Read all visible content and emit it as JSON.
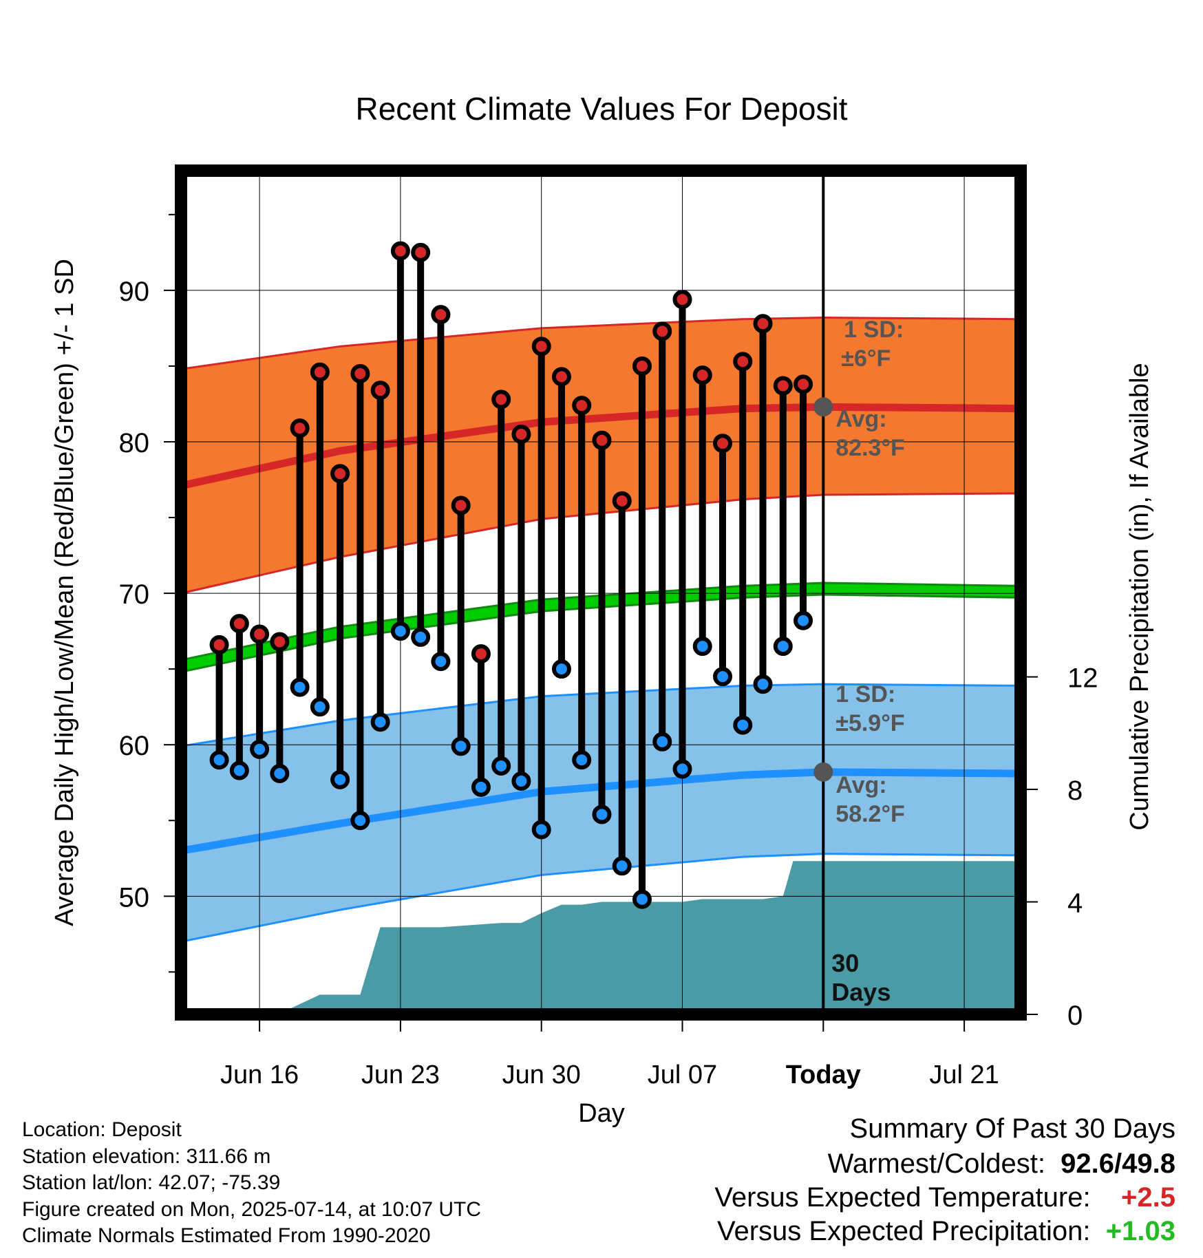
{
  "chart_data": {
    "type": "scatter",
    "title": "Recent Climate Values For Deposit",
    "xlabel": "Day",
    "ylabel": "Average Daily High/Low/Mean (Red/Blue/Green) +/- 1 SD",
    "ylabel_right": "Cumulative Precipitation (in), If Available",
    "x_ticks": [
      "Jun 16",
      "Jun 23",
      "Jun 30",
      "Jul 07",
      "Today",
      "Jul 21"
    ],
    "x_tick_days": [
      16,
      23,
      30,
      37,
      44,
      51
    ],
    "xlim": [
      12.1,
      53.8
    ],
    "ylim": [
      42.2,
      97.9
    ],
    "y_ticks": [
      50,
      60,
      70,
      80,
      90
    ],
    "y2lim": [
      0,
      30.0
    ],
    "y2_ticks": [
      0,
      4,
      8,
      12
    ],
    "today_day": 44,
    "days": [
      14,
      15,
      16,
      17,
      18,
      19,
      20,
      21,
      22,
      23,
      24,
      25,
      26,
      27,
      28,
      29,
      30,
      31,
      32,
      33,
      34,
      35,
      36,
      37,
      38,
      39,
      40,
      41,
      42,
      43
    ],
    "dates": [
      "Jun 14",
      "Jun 15",
      "Jun 16",
      "Jun 17",
      "Jun 18",
      "Jun 19",
      "Jun 20",
      "Jun 21",
      "Jun 22",
      "Jun 23",
      "Jun 24",
      "Jun 25",
      "Jun 26",
      "Jun 27",
      "Jun 28",
      "Jun 29",
      "Jun 30",
      "Jul 01",
      "Jul 02",
      "Jul 03",
      "Jul 04",
      "Jul 05",
      "Jul 06",
      "Jul 07",
      "Jul 08",
      "Jul 09",
      "Jul 10",
      "Jul 11",
      "Jul 12",
      "Jul 13"
    ],
    "series": [
      {
        "name": "High",
        "color": "#d62728",
        "values": [
          66.6,
          68.0,
          67.3,
          66.8,
          80.9,
          84.6,
          77.9,
          84.5,
          83.4,
          92.6,
          92.5,
          88.4,
          75.8,
          66.0,
          82.8,
          80.5,
          86.3,
          84.3,
          82.4,
          80.1,
          76.1,
          85.0,
          87.3,
          89.4,
          84.4,
          79.9,
          85.3,
          87.8,
          83.7,
          83.8
        ]
      },
      {
        "name": "Low",
        "color": "#1e90ff",
        "values": [
          59.0,
          58.3,
          59.7,
          58.1,
          63.8,
          62.5,
          57.7,
          55.0,
          61.5,
          67.5,
          67.1,
          65.5,
          59.9,
          57.2,
          58.6,
          57.6,
          54.4,
          65.0,
          59.0,
          55.4,
          52.0,
          49.8,
          60.2,
          58.4,
          66.5,
          64.5,
          61.3,
          64.0,
          66.5,
          68.2
        ]
      }
    ],
    "normals": {
      "x": [
        12.1,
        20,
        30,
        40,
        44,
        53.8
      ],
      "high_avg": [
        77.1,
        79.4,
        81.3,
        82.2,
        82.3,
        82.2
      ],
      "high_upper": [
        84.8,
        86.3,
        87.5,
        88.1,
        88.2,
        88.1
      ],
      "high_lower": [
        70.0,
        72.4,
        74.9,
        76.2,
        76.5,
        76.6
      ],
      "low_avg": [
        53.0,
        54.8,
        56.9,
        58.0,
        58.2,
        58.1
      ],
      "low_upper": [
        59.9,
        61.6,
        63.2,
        63.9,
        64.0,
        63.9
      ],
      "low_lower": [
        47.0,
        49.1,
        51.4,
        52.6,
        52.8,
        52.7
      ],
      "mean_avg": [
        65.2,
        67.4,
        69.2,
        70.1,
        70.3,
        70.1
      ]
    },
    "precip": {
      "x": [
        12.1,
        17.0,
        19.0,
        21.0,
        22.0,
        25.0,
        28.0,
        29.0,
        30.0,
        31.0,
        32.0,
        33.0,
        36.0,
        37.0,
        38.0,
        41.0,
        42.0,
        42.5,
        53.8
      ],
      "y": [
        0,
        0.03,
        0.7,
        0.7,
        3.1,
        3.1,
        3.25,
        3.25,
        3.6,
        3.9,
        3.9,
        4.0,
        4.0,
        4.0,
        4.1,
        4.1,
        4.2,
        5.45,
        5.45
      ]
    },
    "annotations": {
      "high_sd_line1": "1 SD:",
      "high_sd_line2": "±6°F",
      "high_avg_line1": "Avg:",
      "high_avg_line2": "82.3°F",
      "low_sd_line1": "1 SD:",
      "low_sd_line2": "±5.9°F",
      "low_avg_line1": "Avg:",
      "low_avg_line2": "58.2°F",
      "days_line1": "30",
      "days_line2": "Days"
    },
    "colors": {
      "high_band": "#f4782e",
      "high_line": "#d62728",
      "low_band": "#85c1e9",
      "low_line": "#1e90ff",
      "mean_line": "#00cc00",
      "precip": "#4a9ba5"
    }
  },
  "info": {
    "location": "Location: Deposit",
    "elevation": "Station elevation: 311.66 m",
    "latlon": "Station lat/lon: 42.07; -75.39",
    "created": "Figure created on Mon, 2025-07-14, at 10:07 UTC",
    "normals": "Climate Normals Estimated From 1990-2020"
  },
  "summary": {
    "title": "Summary Of Past 30 Days",
    "warm_cold_label": "Warmest/Coldest:",
    "warm_cold_value": "92.6/49.8",
    "temp_label": "Versus Expected Temperature:",
    "temp_value": "+2.5",
    "precip_label": "Versus Expected Precipitation:",
    "precip_value": "+1.03"
  }
}
